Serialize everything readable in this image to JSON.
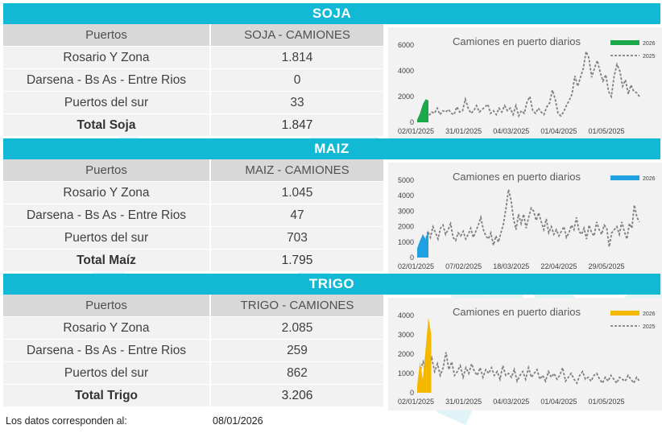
{
  "sections": [
    {
      "title": "SOJA",
      "header": [
        "Puertos",
        "SOJA - CAMIONES"
      ],
      "rows": [
        {
          "label": "Rosario Y Zona",
          "value": "1.814"
        },
        {
          "label": "Darsena - Bs As - Entre Rios",
          "value": "0"
        },
        {
          "label": "Puertos del sur",
          "value": "33"
        }
      ],
      "total": {
        "label": "Total Soja",
        "value": "1.847"
      },
      "chart": {
        "title": "Camiones en puerto diarios",
        "accent": "#1aa84a",
        "legend": [
          "2026",
          "2025"
        ],
        "yticks": [
          0,
          2000,
          4000,
          6000
        ],
        "ymax": 6000,
        "xticks": [
          "02/01/2025",
          "31/01/2025",
          "04/03/2025",
          "01/04/2025",
          "01/05/2025"
        ],
        "series_2026": [
          200,
          700,
          1400,
          1800,
          1700
        ],
        "series_2025": [
          300,
          600,
          900,
          500,
          800,
          700,
          1100,
          600,
          900,
          800,
          1000,
          700,
          600,
          1200,
          800,
          900,
          1800,
          1100,
          700,
          900,
          1300,
          800,
          1000,
          1200,
          1400,
          700,
          900,
          600,
          1100,
          800,
          1300,
          900,
          1100,
          600,
          1300,
          500,
          900,
          700,
          1600,
          2000,
          900,
          700,
          1100,
          800,
          600,
          1200,
          1500,
          2500,
          1800,
          700,
          500,
          800,
          1300,
          1700,
          2200,
          3600,
          2800,
          3500,
          4200,
          5500,
          5000,
          3500,
          4200,
          4800,
          3900,
          3200,
          3700,
          2400,
          2000,
          3600,
          4500,
          4000,
          2800,
          3300,
          2200,
          2900,
          2400,
          2300,
          2000
        ]
      }
    },
    {
      "title": "MAIZ",
      "header": [
        "Puertos",
        "MAIZ - CAMIONES"
      ],
      "rows": [
        {
          "label": "Rosario Y Zona",
          "value": "1.045"
        },
        {
          "label": "Darsena - Bs As - Entre Rios",
          "value": "47"
        },
        {
          "label": "Puertos del sur",
          "value": "703"
        }
      ],
      "total": {
        "label": "Total Maíz",
        "value": "1.795"
      },
      "chart": {
        "title": "Camiones en puerto diarios",
        "accent": "#1fa0e0",
        "legend": [
          "2026"
        ],
        "yticks": [
          0,
          1000,
          2000,
          3000,
          4000,
          5000
        ],
        "ymax": 5000,
        "xticks": [
          "02/01/2025",
          "07/02/2025",
          "18/03/2025",
          "22/04/2025",
          "29/05/2025"
        ],
        "series_2026": [
          600,
          1100,
          1500,
          1200,
          1800
        ],
        "series_2025": [
          900,
          1400,
          1100,
          1700,
          1300,
          2000,
          1600,
          1200,
          1900,
          2100,
          1500,
          1800,
          2200,
          1300,
          1100,
          1600,
          1400,
          1700,
          1200,
          1500,
          1900,
          1300,
          1700,
          2100,
          2600,
          1800,
          1400,
          1200,
          1600,
          800,
          1400,
          1000,
          1600,
          2200,
          3200,
          4400,
          3700,
          2500,
          1800,
          2800,
          2200,
          2800,
          1900,
          2600,
          3200,
          3000,
          2400,
          2900,
          2300,
          1800,
          2500,
          1600,
          2000,
          1500,
          1800,
          1400,
          1700,
          2000,
          1300,
          1600,
          2100,
          1800,
          2600,
          1700,
          1500,
          1900,
          1200,
          2100,
          1600,
          1400,
          2300,
          1800,
          1500,
          2100,
          1900,
          700,
          1600,
          1800,
          2000,
          1500,
          2300,
          1700,
          1200,
          2200,
          1900,
          3400,
          2600,
          2300
        ]
      }
    },
    {
      "title": "TRIGO",
      "header": [
        "Puertos",
        "TRIGO - CAMIONES"
      ],
      "rows": [
        {
          "label": "Rosario Y Zona",
          "value": "2.085"
        },
        {
          "label": "Darsena - Bs As - Entre Rios",
          "value": "259"
        },
        {
          "label": "Puertos del sur",
          "value": "862"
        }
      ],
      "total": {
        "label": "Total Trigo",
        "value": "3.206"
      },
      "chart": {
        "title": "Camiones en puerto diarios",
        "accent": "#f5b800",
        "legend": [
          "2026",
          "2025"
        ],
        "yticks": [
          0,
          1000,
          2000,
          3000,
          4000
        ],
        "ymax": 4000,
        "xticks": [
          "02/01/2025",
          "31/01/2025",
          "04/03/2025",
          "01/04/2025",
          "01/05/2025"
        ],
        "series_2026": [
          400,
          1600,
          700,
          2300,
          3900,
          3000
        ],
        "series_2025": [
          1200,
          1600,
          900,
          1400,
          1800,
          1100,
          1500,
          900,
          1300,
          2100,
          1200,
          1600,
          900,
          1100,
          1400,
          800,
          1300,
          1000,
          1500,
          1100,
          900,
          1300,
          800,
          1200,
          1000,
          1300,
          900,
          1100,
          700,
          1400,
          900,
          1000,
          800,
          1200,
          600,
          900,
          1100,
          700,
          1300,
          800,
          1000,
          1200,
          700,
          900,
          600,
          1100,
          800,
          1000,
          700,
          900,
          1300,
          600,
          800,
          1000,
          700,
          500,
          900,
          1100,
          700,
          800,
          600,
          900,
          1000,
          700,
          500,
          800,
          600,
          900,
          700,
          500,
          800,
          700,
          600,
          900,
          700,
          500,
          800,
          600
        ]
      }
    }
  ],
  "footer": {
    "label": "Los datos corresponden al:",
    "date": "08/01/2026"
  }
}
